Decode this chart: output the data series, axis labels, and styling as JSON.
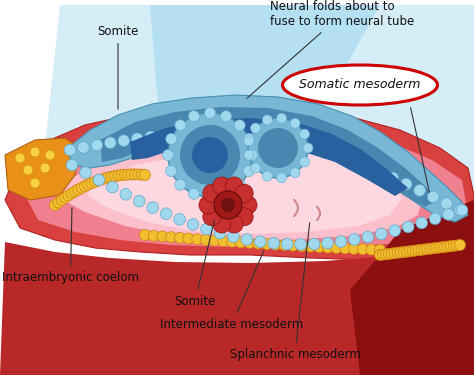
{
  "title": "",
  "background_color": "#ffffff",
  "labels": {
    "somite_top": "Somite",
    "neural_folds": "Neural folds about to\nfuse to form neural tube",
    "somatic_mesoderm": "Somatic mesoderm",
    "intraembryonic_coelom": "Intraembryonic coelom",
    "somite_bottom": "Somite",
    "intermediate_mesoderm": "Intermediate mesoderm",
    "splanchnic_mesoderm": "Splanchnic mesoderm"
  },
  "colors": {
    "background": "#ffffff",
    "blue_bg": "#c8e8f5",
    "blue_neural_outer": "#88c8e0",
    "blue_neural_mid": "#60a8c8",
    "blue_neural_inner": "#3888b0",
    "pink_outer": "#f08898",
    "pink_mid": "#f8b8c8",
    "pink_inner": "#fdd0da",
    "red_body": "#c83030",
    "red_dark": "#8b1010",
    "orange_main": "#e89018",
    "yellow_bead": "#f0c838",
    "orange_bead": "#e87818",
    "text_color": "#111111",
    "arrow_color": "#333333",
    "oval_border": "#cc0000"
  },
  "figsize": [
    4.74,
    3.75
  ],
  "dpi": 100
}
